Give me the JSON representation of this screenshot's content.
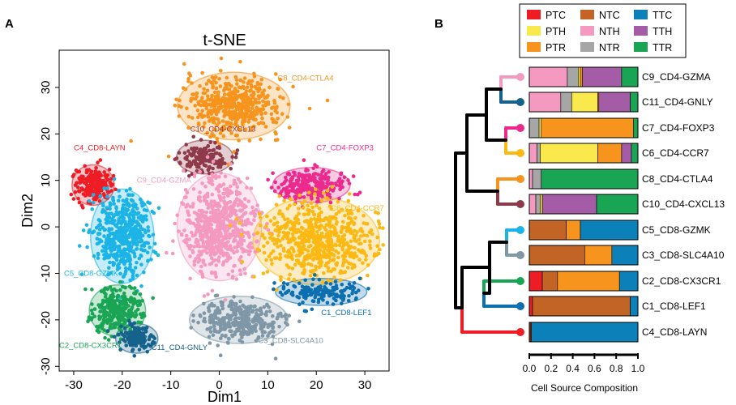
{
  "panel_labels": {
    "a": "A",
    "b": "B"
  },
  "chart_data": [
    {
      "type": "scatter",
      "title": "t-SNE",
      "xlabel": "Dim1",
      "ylabel": "Dim2",
      "xlim": [
        -33,
        35
      ],
      "ylim": [
        -31,
        38
      ],
      "xticks": [
        -30,
        -20,
        -10,
        0,
        10,
        20,
        30
      ],
      "yticks": [
        -30,
        -20,
        -10,
        0,
        10,
        20,
        30
      ],
      "clusters": [
        {
          "name": "C8_CD4-CTLA4",
          "color": "#F7941D",
          "center": [
            3,
            26
          ],
          "spread": [
            8,
            5
          ],
          "n": 520
        },
        {
          "name": "C10_CD4-CXCL13",
          "color": "#8E3A4B",
          "center": [
            -3,
            15
          ],
          "spread": [
            4,
            2.5
          ],
          "n": 150
        },
        {
          "name": "C4_CD8-LAYN",
          "color": "#EE1C25",
          "center": [
            -26,
            9
          ],
          "spread": [
            3,
            3
          ],
          "n": 200
        },
        {
          "name": "C9_CD4-GZMA",
          "color": "#F49AC1",
          "center": [
            0,
            0
          ],
          "spread": [
            6,
            8
          ],
          "n": 650
        },
        {
          "name": "C7_CD4-FOXP3",
          "color": "#EC2A8E",
          "center": [
            19,
            9
          ],
          "spread": [
            5.5,
            2.6
          ],
          "n": 250
        },
        {
          "name": "C6_CD4-CCR7",
          "color": "#FDB913",
          "center": [
            20,
            -3
          ],
          "spread": [
            9,
            6.5
          ],
          "n": 650
        },
        {
          "name": "C5_CD8-GZMK",
          "color": "#1CB4E6",
          "center": [
            -20,
            -2
          ],
          "spread": [
            4.5,
            7
          ],
          "n": 500
        },
        {
          "name": "C1_CD8-LEF1",
          "color": "#0C6FB0",
          "center": [
            21,
            -14
          ],
          "spread": [
            6.5,
            2
          ],
          "n": 150
        },
        {
          "name": "C3_CD8-SLC4A10",
          "color": "#7F97A6",
          "center": [
            4,
            -20
          ],
          "spread": [
            7,
            3.5
          ],
          "n": 350
        },
        {
          "name": "C2_CD8-CX3CR1",
          "color": "#1AA555",
          "center": [
            -21,
            -18
          ],
          "spread": [
            4,
            3.8
          ],
          "n": 300
        },
        {
          "name": "C11_CD4-GNLY",
          "color": "#15628D",
          "center": [
            -17,
            -24
          ],
          "spread": [
            3,
            2.2
          ],
          "n": 130
        }
      ],
      "annotations": [
        {
          "text": "C8_CD4-CTLA4",
          "color": "#F7941D",
          "at": [
            12,
            31.5
          ]
        },
        {
          "text": "C10_CD4-CXCL13",
          "color": "#8E3A4B",
          "at": [
            -6,
            20.5
          ]
        },
        {
          "text": "C4_CD8-LAYN",
          "color": "#EE1C25",
          "at": [
            -30,
            16.5
          ]
        },
        {
          "text": "C9_CD4-GZMA",
          "color": "#F49AC1",
          "at": [
            -17,
            9.5
          ]
        },
        {
          "text": "C7_CD4-FOXP3",
          "color": "#EC2A8E",
          "at": [
            20,
            16.5
          ]
        },
        {
          "text": "C6_CD4-CCR7",
          "color": "#FDB913",
          "at": [
            23,
            3.5
          ]
        },
        {
          "text": "C5_CD8-GZMK",
          "color": "#1CB4E6",
          "at": [
            -32,
            -10.5
          ]
        },
        {
          "text": "C1_CD8-LEF1",
          "color": "#0C6FB0",
          "at": [
            21,
            -19
          ]
        },
        {
          "text": "C3_CD8-SLC4A10",
          "color": "#7F97A6",
          "at": [
            8,
            -25
          ]
        },
        {
          "text": "C2_CD8-CX3CR1",
          "color": "#1AA555",
          "at": [
            -33,
            -26
          ]
        },
        {
          "text": "C11_CD4-GNLY",
          "color": "#15628D",
          "at": [
            -14,
            -26.5
          ]
        }
      ]
    },
    {
      "type": "bar",
      "stacked": true,
      "orientation": "horizontal",
      "xlabel": "Cell Source Composition",
      "xlim": [
        0,
        1
      ],
      "xticks": [
        "0.0",
        "0.2",
        "0.4",
        "0.6",
        "0.8",
        "1.0"
      ],
      "legend": [
        {
          "name": "PTC",
          "color": "#EE1C25"
        },
        {
          "name": "NTC",
          "color": "#C36427"
        },
        {
          "name": "TTC",
          "color": "#0C80B8"
        },
        {
          "name": "PTH",
          "color": "#FAE94C"
        },
        {
          "name": "NTH",
          "color": "#F49AC1"
        },
        {
          "name": "TTH",
          "color": "#A45CA6"
        },
        {
          "name": "PTR",
          "color": "#F7941D"
        },
        {
          "name": "NTR",
          "color": "#A6A6A6"
        },
        {
          "name": "TTR",
          "color": "#1AA555"
        }
      ],
      "categories": [
        "C9_CD4-GZMA",
        "C11_CD4-GNLY",
        "C7_CD4-FOXP3",
        "C6_CD4-CCR7",
        "C8_CD4-CTLA4",
        "C10_CD4-CXCL13",
        "C5_CD8-GZMK",
        "C3_CD8-SLC4A10",
        "C2_CD8-CX3CR1",
        "C1_CD8-LEF1",
        "C4_CD8-LAYN"
      ],
      "category_dot_colors": [
        "#F49AC1",
        "#15628D",
        "#EC2A8E",
        "#FDB913",
        "#F7941D",
        "#8E3A4B",
        "#1CB4E6",
        "#7F97A6",
        "#1AA555",
        "#0C6FB0",
        "#EE1C25"
      ],
      "series": [
        {
          "name": "PTC",
          "values": [
            0,
            0,
            0,
            0,
            0,
            0,
            0.0,
            0.0,
            0.12,
            0.03,
            0.01
          ]
        },
        {
          "name": "NTC",
          "values": [
            0,
            0,
            0,
            0,
            0,
            0,
            0.34,
            0.51,
            0.14,
            0.9,
            0.01
          ]
        },
        {
          "name": "TTC",
          "values": [
            0,
            0,
            0,
            0,
            0,
            0,
            0.53,
            0.24,
            0.17,
            0.07,
            0.98
          ]
        },
        {
          "name": "PTH",
          "values": [
            0.02,
            0.24,
            0.02,
            0.53,
            0.0,
            0.02,
            0,
            0.0,
            0.0,
            0,
            0
          ]
        },
        {
          "name": "NTH",
          "values": [
            0.35,
            0.29,
            0.0,
            0.07,
            0.03,
            0.06,
            0,
            0.0,
            0.0,
            0,
            0
          ]
        },
        {
          "name": "TTH",
          "values": [
            0.36,
            0.29,
            0.0,
            0.09,
            0.0,
            0.5,
            0,
            0.0,
            0.0,
            0,
            0
          ]
        },
        {
          "name": "PTR",
          "values": [
            0.02,
            0.01,
            0.85,
            0.22,
            0.0,
            0.0,
            0.13,
            0.25,
            0.57,
            0,
            0
          ]
        },
        {
          "name": "NTR",
          "values": [
            0.1,
            0.1,
            0.09,
            0.03,
            0.08,
            0.04,
            0,
            0,
            0,
            0,
            0
          ]
        },
        {
          "name": "TTR",
          "values": [
            0.15,
            0.07,
            0.04,
            0.06,
            0.89,
            0.38,
            0,
            0,
            0,
            0,
            0
          ]
        }
      ]
    }
  ]
}
